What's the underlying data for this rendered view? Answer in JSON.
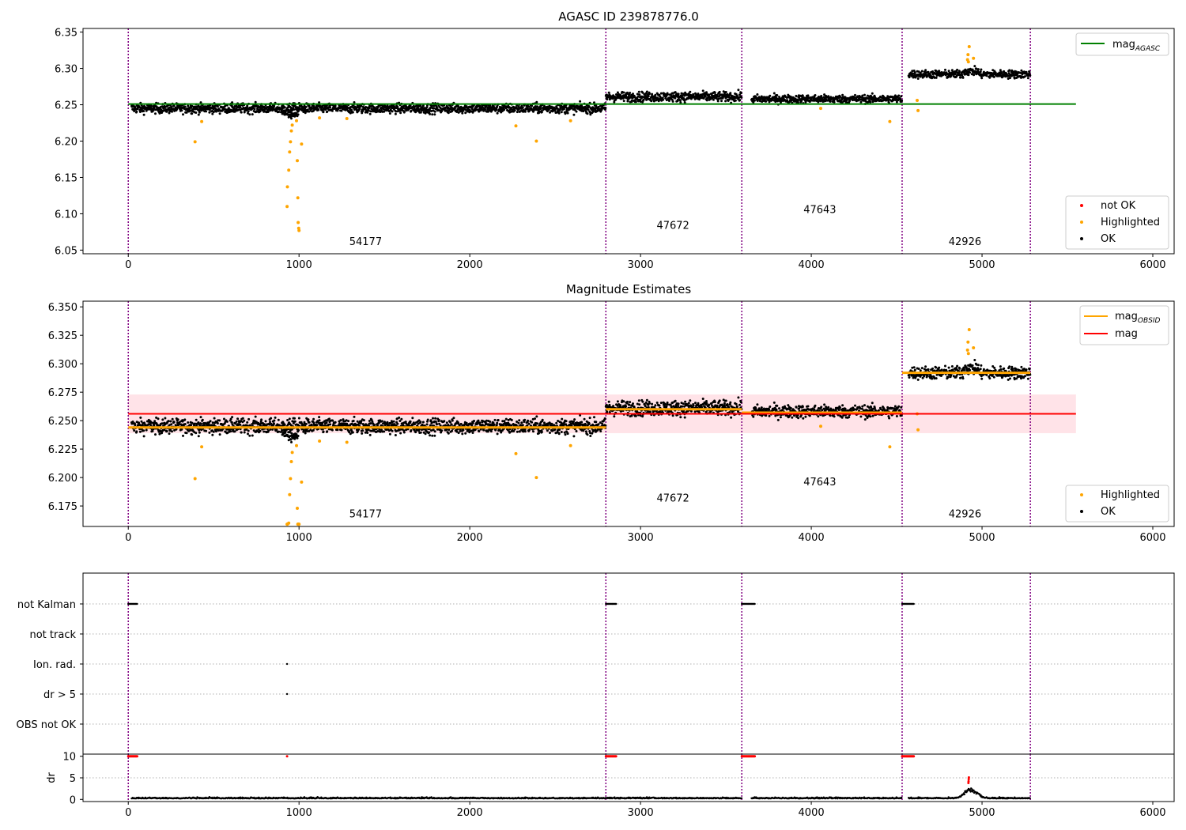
{
  "chart_data": [
    {
      "type": "scatter",
      "title": "AGASC ID 239878776.0",
      "xlim": [
        -265,
        6125
      ],
      "ylim": [
        6.045,
        6.355
      ],
      "xticks": [
        "0",
        "1000",
        "2000",
        "3000",
        "4000",
        "5000",
        "6000"
      ],
      "yticks": [
        "6.05",
        "6.10",
        "6.15",
        "6.20",
        "6.25",
        "6.30",
        "6.35"
      ],
      "obs_boundaries": [
        0,
        2797,
        3593,
        4532,
        5283
      ],
      "obs_labels": [
        {
          "text": "54177",
          "x": 1390,
          "y": 6.057
        },
        {
          "text": "47672",
          "x": 3190,
          "y": 6.079
        },
        {
          "text": "47643",
          "x": 4050,
          "y": 6.101
        },
        {
          "text": "42926",
          "x": 4900,
          "y": 6.057
        }
      ],
      "segments": [
        {
          "x0": 20,
          "x1": 2797,
          "mean": 6.245,
          "spread": 0.006
        },
        {
          "x0": 2797,
          "x1": 3593,
          "mean": 6.261,
          "spread": 0.006
        },
        {
          "x0": 3650,
          "x1": 4532,
          "mean": 6.258,
          "spread": 0.005
        },
        {
          "x0": 4570,
          "x1": 5283,
          "mean": 6.292,
          "spread": 0.005
        }
      ],
      "highlighted_points": [
        [
          391,
          6.199
        ],
        [
          430,
          6.227
        ],
        [
          930,
          6.11
        ],
        [
          932,
          6.137
        ],
        [
          940,
          6.16
        ],
        [
          945,
          6.185
        ],
        [
          950,
          6.199
        ],
        [
          955,
          6.214
        ],
        [
          960,
          6.222
        ],
        [
          985,
          6.228
        ],
        [
          990,
          6.173
        ],
        [
          993,
          6.122
        ],
        [
          995,
          6.088
        ],
        [
          998,
          6.08
        ],
        [
          1000,
          6.077
        ],
        [
          1015,
          6.196
        ],
        [
          1120,
          6.232
        ],
        [
          1280,
          6.231
        ],
        [
          2270,
          6.221
        ],
        [
          2390,
          6.2
        ],
        [
          2590,
          6.228
        ],
        [
          4055,
          6.245
        ],
        [
          4460,
          6.227
        ],
        [
          4620,
          6.256
        ],
        [
          4625,
          6.242
        ],
        [
          4915,
          6.312
        ],
        [
          4918,
          6.319
        ],
        [
          4920,
          6.309
        ],
        [
          4925,
          6.33
        ],
        [
          4950,
          6.314
        ]
      ],
      "reference_line": {
        "name": "mag",
        "subscript": "AGASC",
        "value": 6.251,
        "x0": 0,
        "x1": 5550
      },
      "legend_top": [
        {
          "label": "mag",
          "subscript": "AGASC",
          "color": "#008000"
        }
      ],
      "legend_bottom": [
        {
          "label": "not OK",
          "color": "#ff0000"
        },
        {
          "label": "Highlighted",
          "color": "#ffa500"
        },
        {
          "label": "OK",
          "color": "#000000"
        }
      ]
    },
    {
      "type": "scatter",
      "title": "Magnitude Estimates",
      "xlim": [
        -265,
        6125
      ],
      "ylim": [
        6.157,
        6.355
      ],
      "xticks": [
        "0",
        "1000",
        "2000",
        "3000",
        "4000",
        "5000",
        "6000"
      ],
      "yticks": [
        "6.175",
        "6.200",
        "6.225",
        "6.250",
        "6.275",
        "6.300",
        "6.325",
        "6.350"
      ],
      "obs_boundaries": [
        0,
        2797,
        3593,
        4532,
        5283
      ],
      "obs_labels": [
        {
          "text": "54177",
          "x": 1390,
          "y": 6.165
        },
        {
          "text": "47672",
          "x": 3190,
          "y": 6.179
        },
        {
          "text": "47643",
          "x": 4050,
          "y": 6.193
        },
        {
          "text": "42926",
          "x": 4900,
          "y": 6.165
        }
      ],
      "obs_means": [
        {
          "x0": 0,
          "x1": 2797,
          "value": 6.244
        },
        {
          "x0": 2797,
          "x1": 3593,
          "value": 6.26
        },
        {
          "x0": 3593,
          "x1": 4532,
          "value": 6.257
        },
        {
          "x0": 4532,
          "x1": 5283,
          "value": 6.292
        }
      ],
      "mag": {
        "value": 6.256,
        "x0": 0,
        "x1": 5550,
        "band": [
          6.239,
          6.273
        ]
      },
      "legend_top": [
        {
          "label": "mag",
          "subscript": "OBSID",
          "color": "#ffa500"
        },
        {
          "label": "mag",
          "subscript": "",
          "color": "#ff0000"
        }
      ],
      "legend_bottom": [
        {
          "label": "Highlighted",
          "color": "#ffa500"
        },
        {
          "label": "OK",
          "color": "#000000"
        }
      ]
    },
    {
      "type": "scatter",
      "title": "",
      "xlim": [
        -265,
        6125
      ],
      "xticks": [
        "0",
        "1000",
        "2000",
        "3000",
        "4000",
        "5000",
        "6000"
      ],
      "flag_categories": [
        "not Kalman",
        "not track",
        "Ion. rad.",
        "dr > 5",
        "OBS not OK"
      ],
      "flag_events": [
        {
          "flag": "not Kalman",
          "x0": 0,
          "x1": 55
        },
        {
          "flag": "not Kalman",
          "x0": 2797,
          "x1": 2860
        },
        {
          "flag": "not Kalman",
          "x0": 3593,
          "x1": 3670
        },
        {
          "flag": "not Kalman",
          "x0": 4532,
          "x1": 4600
        },
        {
          "flag": "Ion. rad.",
          "x0": 930,
          "x1": 930
        },
        {
          "flag": "dr > 5",
          "x0": 930,
          "x1": 930
        }
      ],
      "dr": {
        "ylabel": "dr",
        "yticks": [
          "0",
          "5",
          "10"
        ],
        "ylim": [
          -0.5,
          10.5
        ],
        "clipped_value": 10,
        "clipped_ranges": [
          [
            0,
            55
          ],
          [
            930,
            930
          ],
          [
            2797,
            2860
          ],
          [
            3593,
            3670
          ],
          [
            4532,
            4600
          ]
        ],
        "baseline": 0.2,
        "bump": {
          "x": 4935,
          "peak": 2.0,
          "width": 50
        },
        "red_points": [
          [
            4920,
            3.8
          ],
          [
            4921,
            4.2
          ],
          [
            4922,
            4.7
          ],
          [
            4923,
            5.1
          ]
        ]
      }
    }
  ]
}
